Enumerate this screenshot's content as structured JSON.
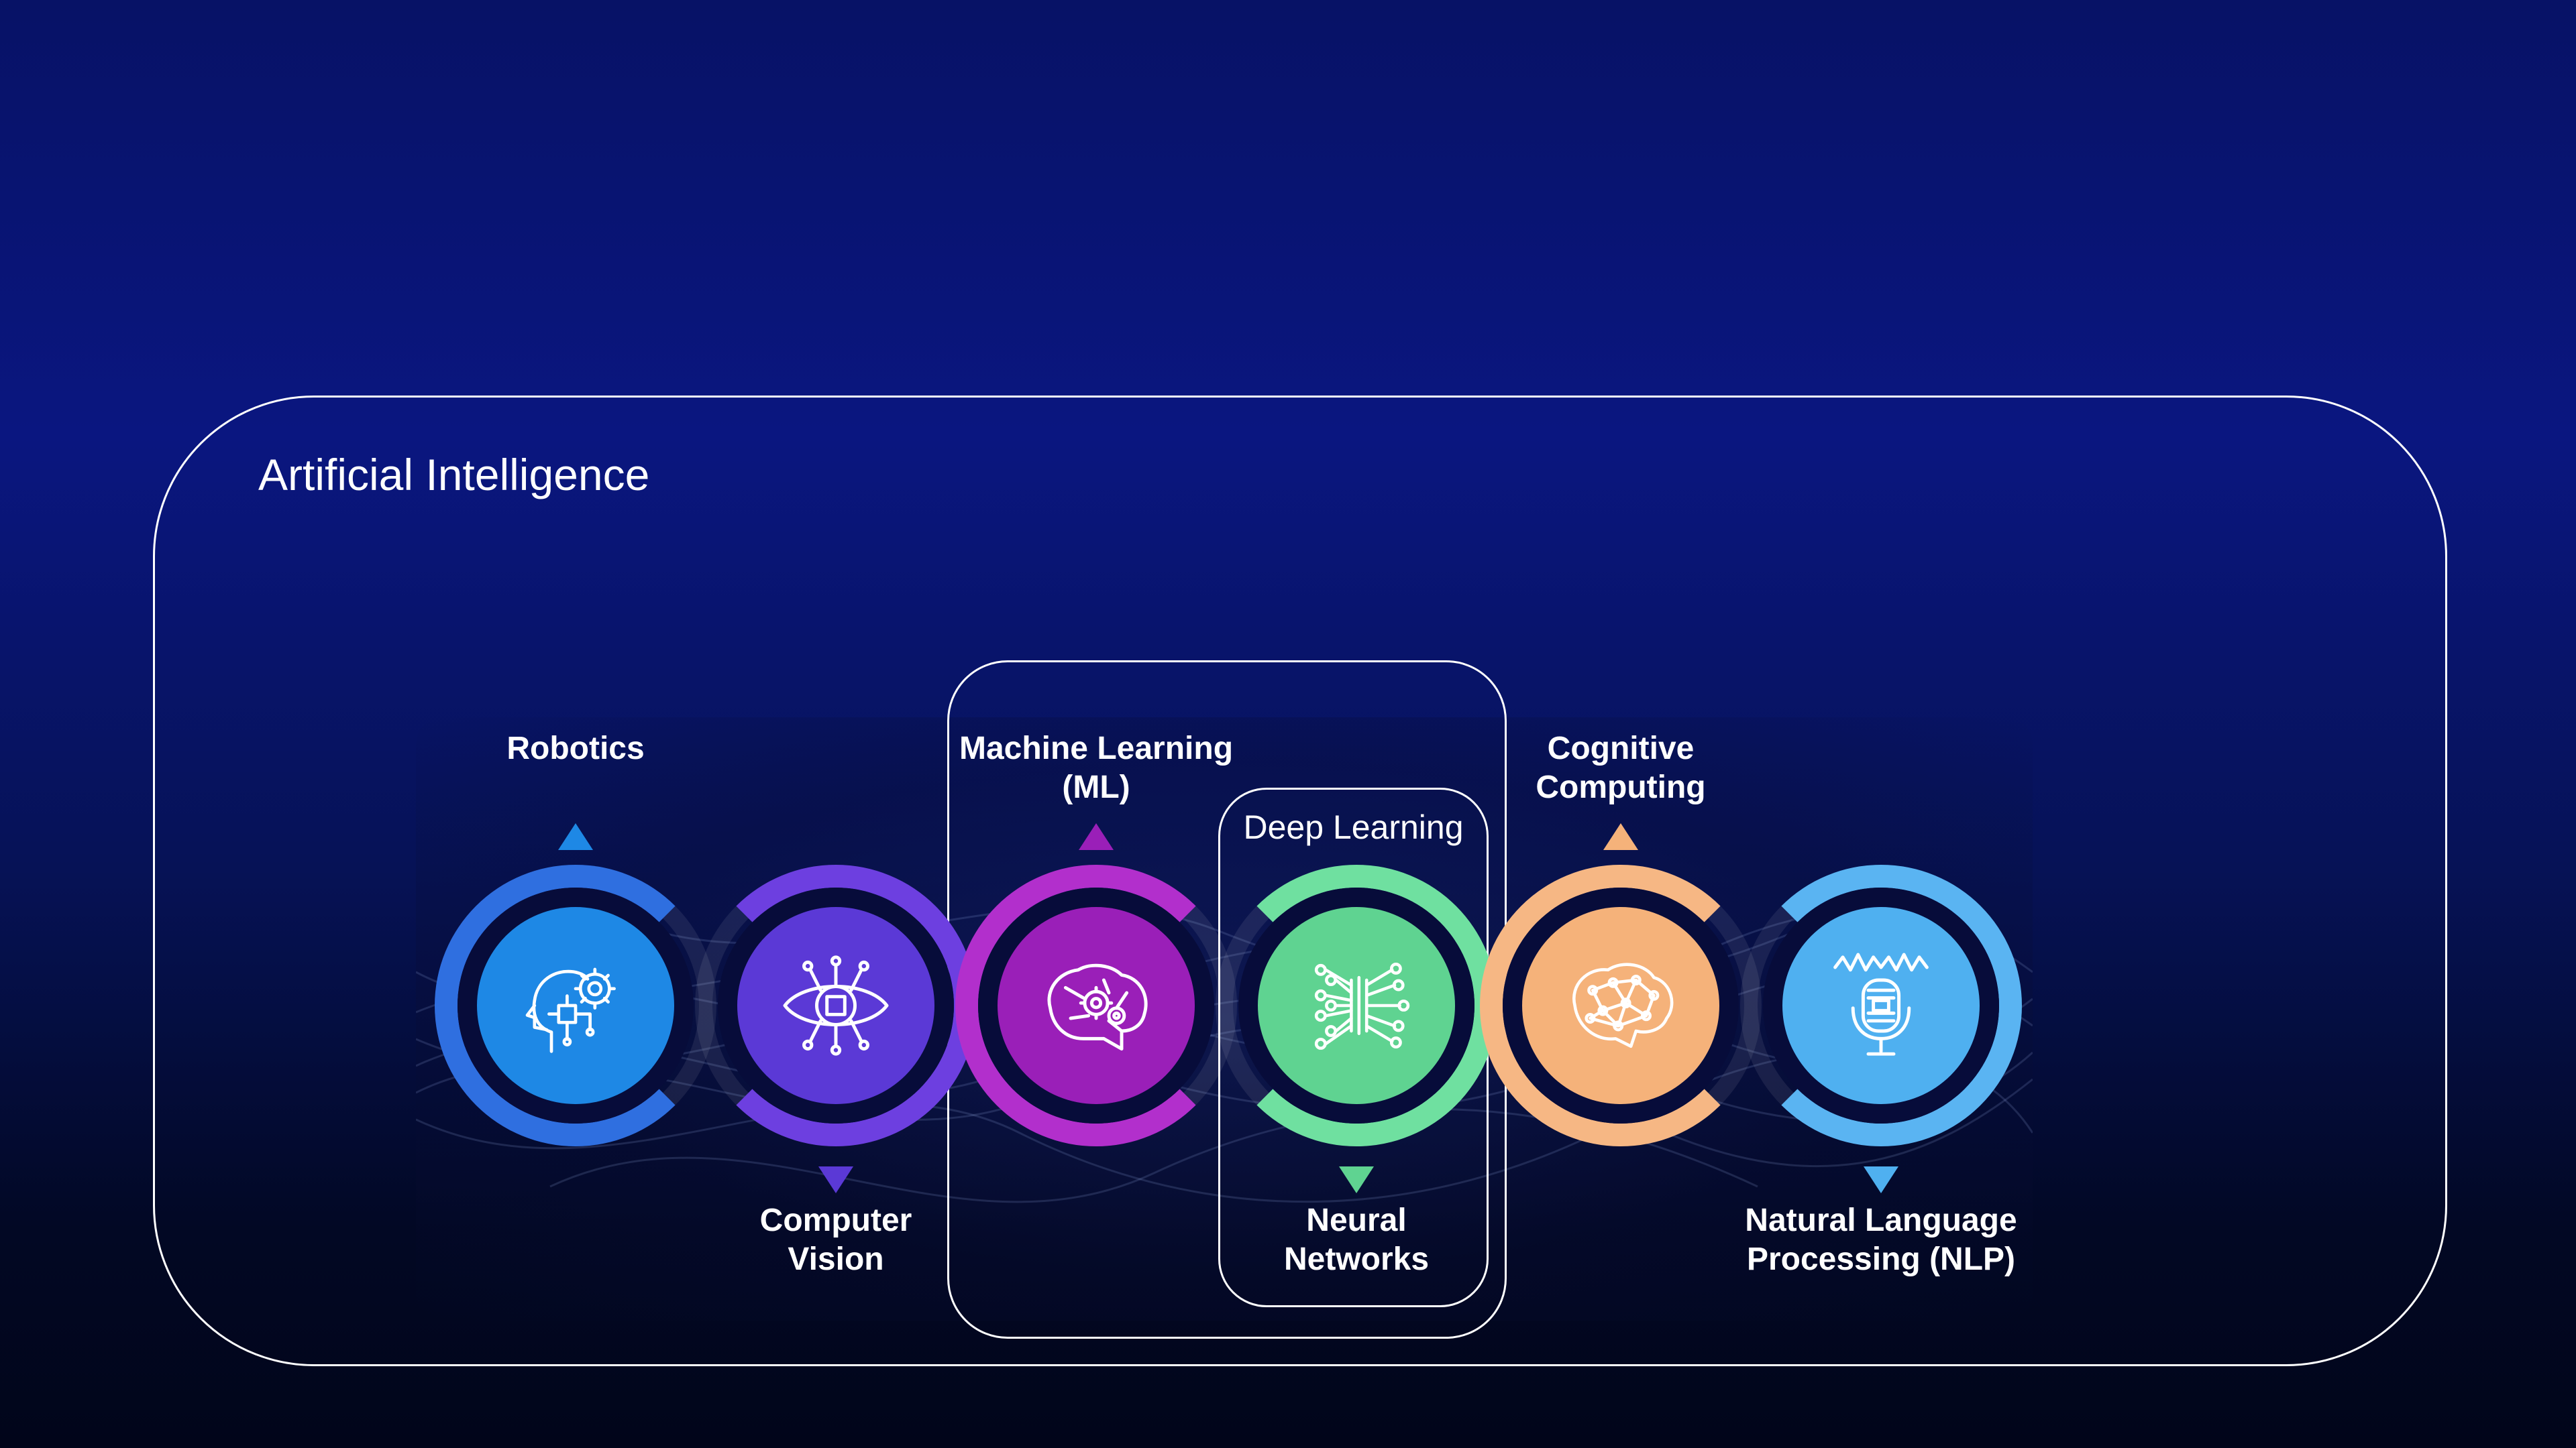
{
  "diagram": {
    "outer_title": "Artificial Intelligence",
    "ml_box_title": "",
    "dl_box_title": "Deep Learning",
    "items": [
      {
        "label": "Robotics",
        "label_position": "top",
        "color": "#1e88e5",
        "ring_color": "#2f6fe0",
        "icon": "robot-head-gear-icon"
      },
      {
        "label": "Computer\nVision",
        "label_position": "bottom",
        "color": "#5b39d6",
        "ring_color": "#6d3fe0",
        "icon": "eye-chip-icon"
      },
      {
        "label": "Machine Learning\n(ML)",
        "label_position": "top",
        "color": "#9a1fb8",
        "ring_color": "#b22fcc",
        "icon": "brain-gears-icon"
      },
      {
        "label": "Neural\nNetworks",
        "label_position": "bottom",
        "color": "#5fd391",
        "ring_color": "#6fe0a0",
        "icon": "neural-network-icon"
      },
      {
        "label": "Cognitive\nComputing",
        "label_position": "top",
        "color": "#f5b27a",
        "ring_color": "#f6b784",
        "icon": "brain-network-icon"
      },
      {
        "label": "Natural Language\nProcessing (NLP)",
        "label_position": "bottom",
        "color": "#4fb0f0",
        "ring_color": "#5ab4f2",
        "icon": "microphone-soundwave-icon"
      }
    ]
  },
  "colors": {
    "frame": "#ffffff",
    "text": "#ffffff"
  }
}
